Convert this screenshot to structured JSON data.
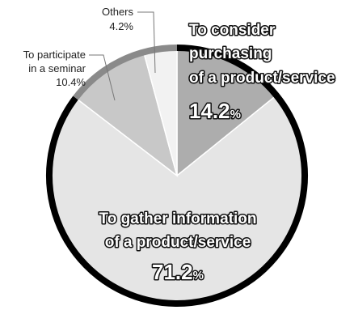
{
  "colors": {
    "slice_purchase": "#adadad",
    "slice_gather": "#e5e5e5",
    "slice_seminar": "#c8c8c8",
    "slice_others": "#f2f2f2",
    "ring": "#000000",
    "ring_light": "#8a8a8a",
    "slice_border": "#ffffff"
  },
  "chart_data": {
    "type": "pie",
    "slices": [
      {
        "lines": [
          "To consider",
          "purchasing",
          "of a product/service"
        ],
        "value": 14.2,
        "value_number": "14.2",
        "value_unit": "%"
      },
      {
        "lines": [
          "To gather information",
          "of a product/service"
        ],
        "value": 71.2,
        "value_number": "71.2",
        "value_unit": "%"
      },
      {
        "lines": [
          "To participate",
          "in a seminar"
        ],
        "value": 10.4,
        "value_text": "10.4%"
      },
      {
        "lines": [
          "Others"
        ],
        "value": 4.2,
        "value_text": "4.2%"
      }
    ]
  }
}
